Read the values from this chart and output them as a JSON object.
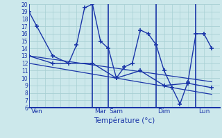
{
  "background_color": "#cce8eb",
  "line_color": "#1a35a8",
  "grid_color": "#a8d0d4",
  "xlabel": "Température (°c)",
  "ylim": [
    6,
    20
  ],
  "yticks": [
    6,
    7,
    8,
    9,
    10,
    11,
    12,
    13,
    14,
    15,
    16,
    17,
    18,
    19,
    20
  ],
  "xmin": 0,
  "xmax": 24,
  "day_labels": [
    "Ven",
    "Mar",
    "Sam",
    "Dim",
    "Lun"
  ],
  "day_tick_x": [
    1,
    9,
    11,
    17,
    22
  ],
  "vline_x": [
    0,
    8,
    10,
    16,
    21
  ],
  "series1_x": [
    0,
    1,
    3,
    5,
    6,
    7,
    8,
    9,
    10,
    11,
    12,
    13,
    14,
    15,
    16,
    17,
    18,
    19,
    20,
    21,
    22,
    23
  ],
  "series1_y": [
    19,
    17,
    13,
    12,
    14.5,
    19.5,
    20,
    15,
    14,
    10,
    11.5,
    12,
    16.5,
    16,
    14.5,
    11,
    8.7,
    6.5,
    9.5,
    16,
    16,
    14
  ],
  "series2_x": [
    0,
    3,
    8,
    11,
    14,
    17,
    20,
    23
  ],
  "series2_y": [
    13,
    12,
    12,
    10,
    11,
    9,
    9.3,
    8.7
  ],
  "trend1_x": [
    0,
    23
  ],
  "trend1_y": [
    13,
    9.5
  ],
  "trend2_x": [
    0,
    23
  ],
  "trend2_y": [
    12,
    7.8
  ]
}
